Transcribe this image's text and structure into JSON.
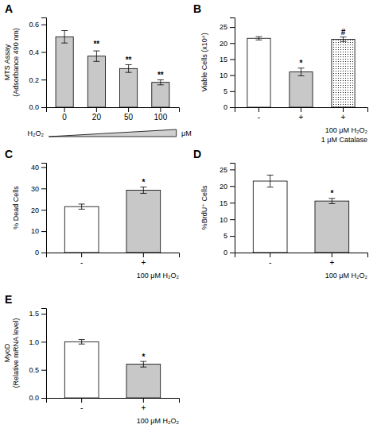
{
  "chart_data": [
    {
      "type": "bar",
      "title": "A",
      "categories": [
        "0",
        "20",
        "50",
        "100"
      ],
      "values": [
        0.51,
        0.37,
        0.28,
        0.18
      ],
      "errors": [
        0.045,
        0.038,
        0.028,
        0.018
      ],
      "colors": [
        "#c8c8c8",
        "#c8c8c8",
        "#c8c8c8",
        "#c8c8c8"
      ],
      "ylabel": "MTS Assay\n(Adsorbance 490 nm)",
      "ylim": [
        0,
        0.65
      ],
      "yticks": [
        {
          "value": 0.0,
          "label": "0.0"
        },
        0.2,
        0.4,
        0.6
      ],
      "significance": [
        null,
        "**",
        "**",
        "**"
      ],
      "significance_y": [
        null,
        0.435,
        0.325,
        0.21
      ],
      "annotations": [
        "H₂O₂",
        "μM"
      ]
    },
    {
      "type": "bar",
      "title": "B",
      "categories": [
        "-",
        "+",
        "+"
      ],
      "values": [
        21.5,
        11.0,
        21.2
      ],
      "errors": [
        0.5,
        1.2,
        0.7
      ],
      "colors": [
        "white",
        "#c8c8c8",
        "dotted"
      ],
      "ylabel": "Viable Cells (x10⁴)",
      "ylim": [
        0,
        28
      ],
      "yticks": [
        0,
        5,
        10,
        15,
        20,
        25
      ],
      "significance": [
        null,
        "*",
        "#"
      ],
      "significance_y": [
        null,
        13.0,
        22.5
      ],
      "xlabel": "100 μM H₂O₂\n1 μM Catalase"
    },
    {
      "type": "bar",
      "title": "C",
      "categories": [
        "-",
        "+"
      ],
      "values": [
        21.5,
        29.2
      ],
      "errors": [
        1.2,
        1.5
      ],
      "colors": [
        "white",
        "#c8c8c8"
      ],
      "ylabel": "% Dead Cells",
      "ylim": [
        0,
        42
      ],
      "yticks": [
        0,
        10,
        20,
        30,
        40
      ],
      "significance": [
        null,
        "*"
      ],
      "significance_y": [
        null,
        31.5
      ],
      "xlabel": "100 μM H₂O₂"
    },
    {
      "type": "bar",
      "title": "D",
      "categories": [
        "-",
        "+"
      ],
      "values": [
        21.5,
        15.5
      ],
      "errors": [
        1.8,
        0.8
      ],
      "colors": [
        "white",
        "#c8c8c8"
      ],
      "ylabel": "%BrdU⁺ Cells",
      "ylim": [
        0,
        27
      ],
      "yticks": [
        0,
        5,
        10,
        15,
        20,
        25
      ],
      "significance": [
        null,
        "*"
      ],
      "significance_y": [
        null,
        17.0
      ],
      "xlabel": "100 μM H₂O₂"
    },
    {
      "type": "bar",
      "title": "E",
      "categories": [
        "-",
        "+"
      ],
      "values": [
        1.0,
        0.6
      ],
      "errors": [
        0.04,
        0.05
      ],
      "colors": [
        "white",
        "#c8c8c8"
      ],
      "ylabel": "MyoD\n(Relative mRNA level)",
      "ylim": [
        0,
        1.6
      ],
      "yticks": [
        {
          "value": 0.0,
          "label": "0.0"
        },
        0.5,
        {
          "value": 1.0,
          "label": "1.0"
        },
        1.5
      ],
      "significance": [
        null,
        "*"
      ],
      "significance_y": [
        null,
        0.68
      ],
      "xlabel": "100 μM H₂O₂"
    }
  ]
}
